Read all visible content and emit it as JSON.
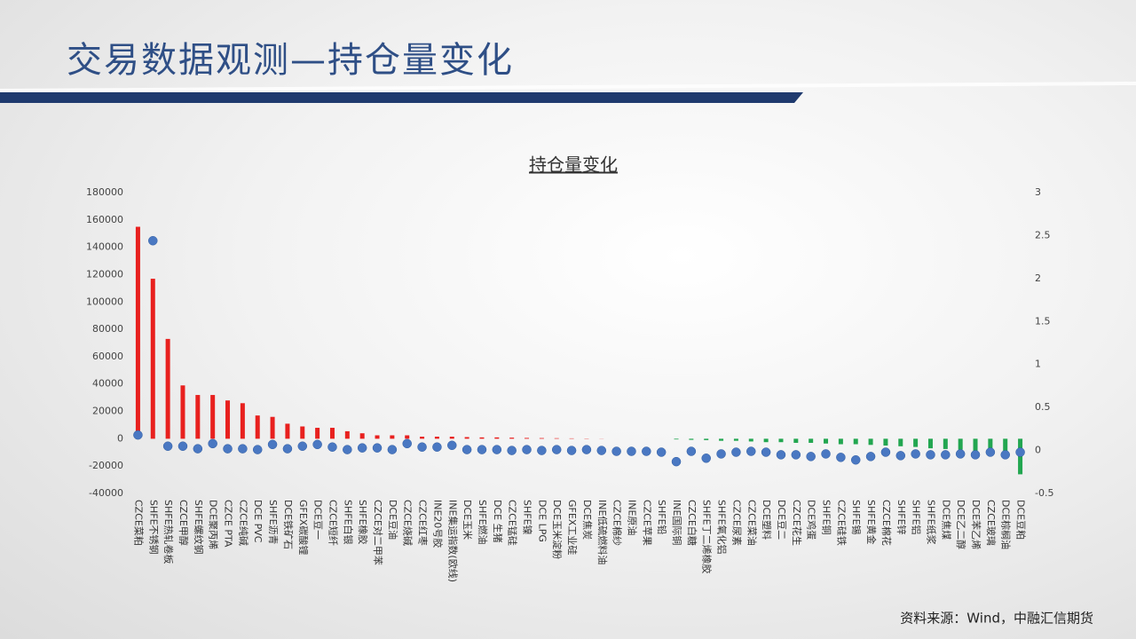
{
  "header": {
    "title": "交易数据观测—持仓量变化"
  },
  "chart_data": {
    "type": "bar",
    "title": "持仓量变化",
    "categories": [
      "CZCE菜粕",
      "SHFE不锈钢",
      "SHFE热轧卷板",
      "CZCE甲醇",
      "SHFE螺纹钢",
      "DCE聚丙烯",
      "CZCE PTA",
      "CZCE纯碱",
      "DCE PVC",
      "SHFE沥青",
      "DCE铁矿石",
      "GFEX碳酸锂",
      "DCE豆一",
      "CZCE短纤",
      "SHFE白银",
      "SHFE橡胶",
      "CZCE对二甲苯",
      "DCE豆油",
      "CZCE烧碱",
      "CZCE红枣",
      "INE20号胶",
      "INE集运指数(欧线)",
      "DCE玉米",
      "SHFE燃油",
      "DCE 生猪",
      "CZCE锰硅",
      "SHFE镍",
      "DCE LPG",
      "DCE玉米淀粉",
      "GFEX工业硅",
      "DCE焦炭",
      "INE低硫燃料油",
      "CZCE棉纱",
      "INE原油",
      "CZCE苹果",
      "SHFE铅",
      "INE国际铜",
      "CZCE白糖",
      "SHFE丁二烯橡胶",
      "SHFE氧化铝",
      "CZCE尿素",
      "CZCE菜油",
      "DCE塑料",
      "DCE豆二",
      "CZCE花生",
      "DCE鸡蛋",
      "SHFE铜",
      "CZCE硅铁",
      "SHFE锡",
      "SHFE黄金",
      "CZCE棉花",
      "SHFE锌",
      "SHFE铝",
      "SHFE纸浆",
      "DCE焦煤",
      "DCE乙二醇",
      "DCE苯乙烯",
      "CZCE玻璃",
      "DCE棕榈油",
      "DCE豆粕"
    ],
    "series": [
      {
        "type": "bar",
        "color": "#e8201e",
        "negative_color": "#22a650",
        "values": [
          155000,
          117000,
          73000,
          39000,
          32000,
          32000,
          28000,
          26000,
          17000,
          16000,
          11000,
          9000,
          8000,
          8000,
          5500,
          4000,
          2500,
          2500,
          2500,
          1500,
          1500,
          1500,
          1200,
          1000,
          1000,
          800,
          600,
          500,
          400,
          300,
          200,
          100,
          0,
          0,
          0,
          0,
          -500,
          -800,
          -1000,
          -1500,
          -1500,
          -2000,
          -2500,
          -2500,
          -3000,
          -3000,
          -3500,
          -4000,
          -4000,
          -4500,
          -5000,
          -5500,
          -6000,
          -7000,
          -7500,
          -8000,
          -9000,
          -10000,
          -14000,
          -26000
        ]
      },
      {
        "type": "scatter",
        "axis": "y2",
        "color": "#4a78c2",
        "values": [
          0.18,
          2.44,
          0.05,
          0.05,
          0.02,
          0.08,
          0.02,
          0.02,
          0.01,
          0.07,
          0.02,
          0.05,
          0.07,
          0.04,
          0.01,
          0.03,
          0.03,
          0.01,
          0.08,
          0.04,
          0.04,
          0.06,
          0.01,
          0.01,
          0.01,
          0,
          0.01,
          0,
          0.01,
          0,
          0.01,
          0,
          -0.01,
          -0.01,
          -0.01,
          -0.02,
          -0.13,
          -0.01,
          -0.09,
          -0.04,
          -0.02,
          -0.01,
          -0.02,
          -0.05,
          -0.05,
          -0.07,
          -0.04,
          -0.08,
          -0.11,
          -0.07,
          -0.02,
          -0.06,
          -0.04,
          -0.05,
          -0.05,
          -0.04,
          -0.05,
          -0.02,
          -0.05,
          -0.02
        ]
      }
    ],
    "ylim": [
      -40000,
      180000
    ],
    "yticks": [
      -40000,
      -20000,
      0,
      20000,
      40000,
      60000,
      80000,
      100000,
      120000,
      140000,
      160000,
      180000
    ],
    "y2lim": [
      -0.5,
      3
    ],
    "y2ticks": [
      -0.5,
      0,
      0.5,
      1,
      1.5,
      2,
      2.5,
      3
    ]
  },
  "footer": {
    "source": "资料来源：Wind，中融汇信期货"
  }
}
